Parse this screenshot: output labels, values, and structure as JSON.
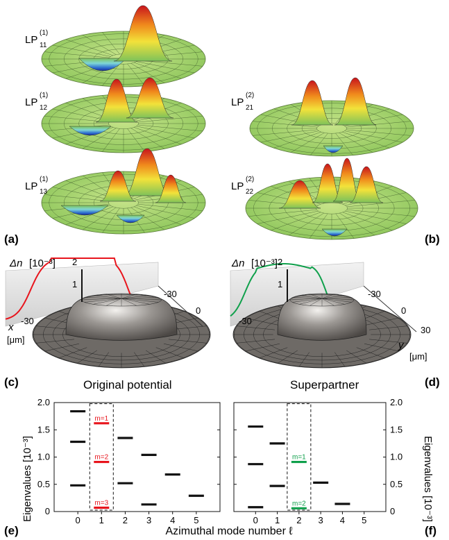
{
  "modes_original": [
    {
      "base": "LP",
      "sup": "(1)",
      "sub": "11"
    },
    {
      "base": "LP",
      "sup": "(1)",
      "sub": "12"
    },
    {
      "base": "LP",
      "sup": "(1)",
      "sub": "13"
    }
  ],
  "modes_superpartner": [
    {
      "base": "LP",
      "sup": "(2)",
      "sub": "21"
    },
    {
      "base": "LP",
      "sup": "(2)",
      "sub": "22"
    }
  ],
  "panel_letters": {
    "a": "(a)",
    "b": "(b)",
    "c": "(c)",
    "d": "(d)",
    "e": "(e)",
    "f": "(f)"
  },
  "potential_panels": {
    "left": {
      "caption": "Original potential",
      "dn_label": "Δn",
      "dn_unit": "[10⁻³]",
      "dn_ticks": [
        "2",
        "1"
      ],
      "coord_ticks": [
        "-30",
        "0",
        "-30"
      ],
      "x_label": "x",
      "x_unit": "[μm]"
    },
    "right": {
      "caption": "Superpartner",
      "dn_label": "Δn",
      "dn_unit": "[10⁻³]",
      "dn_ticks": [
        "2",
        "1"
      ],
      "coord_ticks": [
        "-30",
        "0",
        "-30",
        "30"
      ],
      "y_label": "y",
      "y_unit": "[μm]"
    }
  },
  "colors": {
    "original": "#e8141c",
    "superpartner": "#0fa04b",
    "surface_green": "#a8d66a",
    "mirror_gray": "#6e6a66"
  },
  "chart_data": [
    {
      "type": "scatter",
      "marker": "horizontal-dash",
      "xlabel": "Azimuthal mode number ℓ",
      "ylabel": "Eigenvalues [10⁻³]",
      "xticks": [
        "0",
        "1",
        "2",
        "3",
        "4",
        "5"
      ],
      "yticks": [
        "0",
        "0.5",
        "1.0",
        "1.5",
        "2.0"
      ],
      "xlim": [
        -1,
        6
      ],
      "ylim": [
        0,
        2.0
      ],
      "highlight_color": "#e8141c",
      "points": [
        {
          "x": 0,
          "y": 1.84
        },
        {
          "x": 0,
          "y": 1.28
        },
        {
          "x": 0,
          "y": 0.48
        },
        {
          "x": 1,
          "y": 1.62,
          "label": "m=1",
          "highlight": true
        },
        {
          "x": 1,
          "y": 0.91,
          "label": "m=2",
          "highlight": true
        },
        {
          "x": 1,
          "y": 0.07,
          "label": "m=3",
          "highlight": true
        },
        {
          "x": 2,
          "y": 1.35
        },
        {
          "x": 2,
          "y": 0.52
        },
        {
          "x": 3,
          "y": 1.04
        },
        {
          "x": 3,
          "y": 0.13
        },
        {
          "x": 4,
          "y": 0.68
        },
        {
          "x": 5,
          "y": 0.29
        }
      ],
      "dashed_box_x": 1
    },
    {
      "type": "scatter",
      "marker": "horizontal-dash",
      "ylabel": "Eigenvalues [10⁻³]",
      "xticks": [
        "0",
        "1",
        "2",
        "3",
        "4",
        "5"
      ],
      "yticks": [
        "0",
        "0.5",
        "1.0",
        "1.5",
        "2.0"
      ],
      "xlim": [
        -1,
        6
      ],
      "ylim": [
        0,
        2.0
      ],
      "highlight_color": "#0fa04b",
      "points": [
        {
          "x": 0,
          "y": 1.56
        },
        {
          "x": 0,
          "y": 0.87
        },
        {
          "x": 0,
          "y": 0.08
        },
        {
          "x": 1,
          "y": 1.25
        },
        {
          "x": 1,
          "y": 0.47
        },
        {
          "x": 2,
          "y": 0.91,
          "label": "m=1",
          "highlight": true
        },
        {
          "x": 2,
          "y": 0.06,
          "label": "m=2",
          "highlight": true
        },
        {
          "x": 3,
          "y": 0.53
        },
        {
          "x": 4,
          "y": 0.14
        }
      ],
      "dashed_box_x": 2
    }
  ]
}
